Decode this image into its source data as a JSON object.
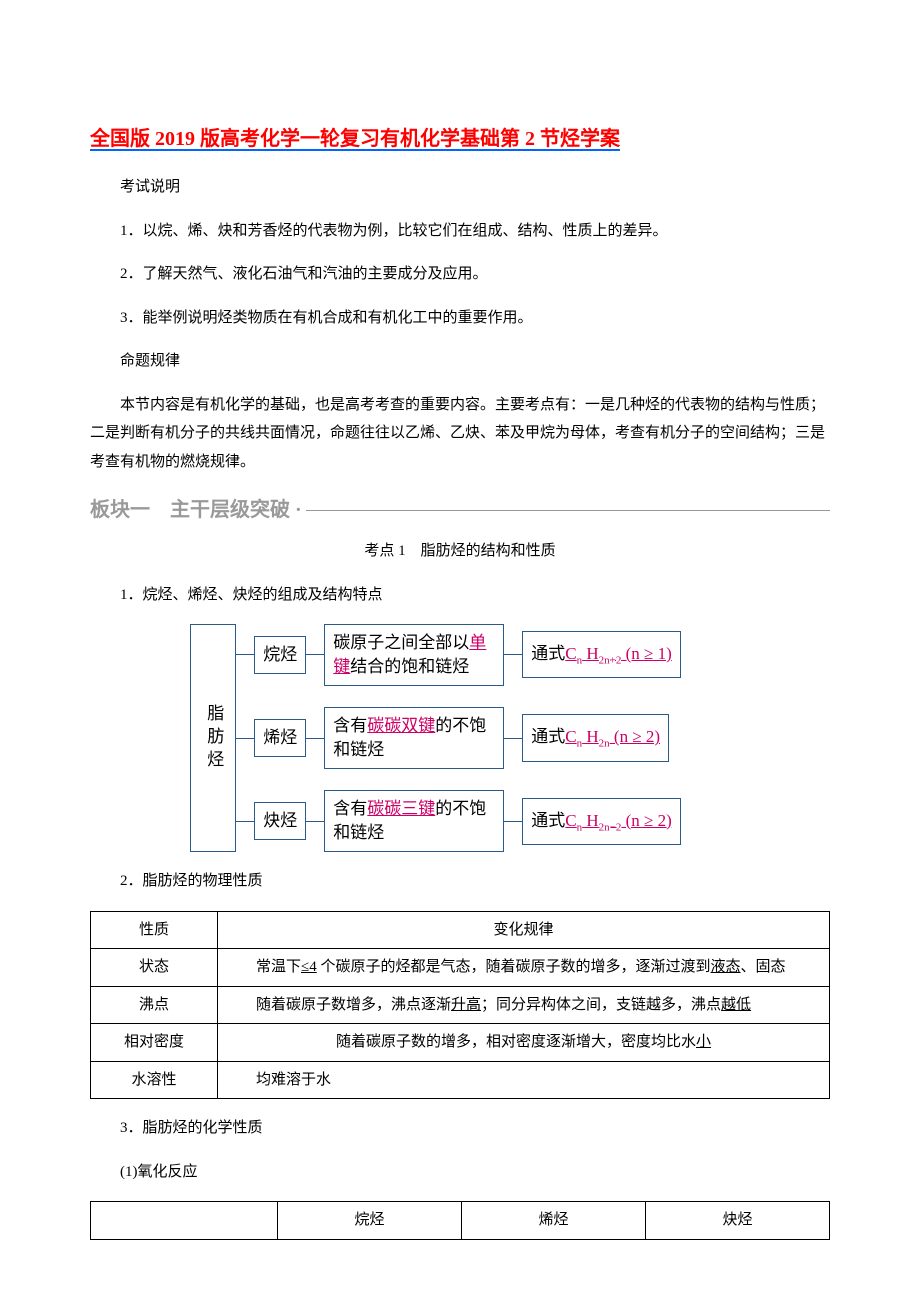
{
  "title": "全国版 2019 版高考化学一轮复习有机化学基础第 2 节烃学案",
  "exam_note_heading": "考试说明",
  "points": [
    "1．以烷、烯、炔和芳香烃的代表物为例，比较它们在组成、结构、性质上的差异。",
    "2．了解天然气、液化石油气和汽油的主要成分及应用。",
    "3．能举例说明烃类物质在有机合成和有机化工中的重要作用。"
  ],
  "rule_heading": "命题规律",
  "rule_body": "本节内容是有机化学的基础，也是高考考查的重要内容。主要考点有：一是几种烃的代表物的结构与性质；二是判断有机分子的共线共面情况，命题往往以乙烯、乙炔、苯及甲烷为母体，考查有机分子的空间结构；三是考查有机物的燃烧规律。",
  "section_header": "板块一　主干层级突破 ·",
  "kp_title": "考点 1　脂肪烃的结构和性质",
  "h1": "1．烷烃、烯烃、炔烃的组成及结构特点",
  "diagram": {
    "root": "脂肪烃",
    "rows": [
      {
        "type_label": "烷烃",
        "desc_pre": "碳原子之间全部以",
        "desc_key": "单键",
        "desc_post": "结合的饱和链烃",
        "formula_label": "通式",
        "formula_html": "C<sub>n</sub> H<sub>2n+2</sub> (n ≥ 1)"
      },
      {
        "type_label": "烯烃",
        "desc_pre": "含有",
        "desc_key": "碳碳双键",
        "desc_post": "的不饱和链烃",
        "formula_label": "通式",
        "formula_html": "C<sub>n</sub> H<sub>2n</sub> (n ≥ 2)"
      },
      {
        "type_label": "炔烃",
        "desc_pre": "含有",
        "desc_key": "碳碳三键",
        "desc_post": "的不饱和链烃",
        "formula_label": "通式",
        "formula_html": "C<sub>n</sub> H<sub>2n−2</sub> (n ≥ 2)"
      }
    ],
    "colors": {
      "box_border": "#2a5a8a",
      "key_color": "#cc0066"
    }
  },
  "h2": "2．脂肪烃的物理性质",
  "phys_table": {
    "headers": [
      "性质",
      "变化规律"
    ],
    "rows": [
      {
        "prop": "状态",
        "rule_pre": "常温下",
        "rule_u1": "≤4",
        "rule_mid": " 个碳原子的烃都是气态，随着碳原子数的增多，逐渐过渡到",
        "rule_u2": "液态",
        "rule_post": "、固态"
      },
      {
        "prop": "沸点",
        "rule_pre": "随着碳原子数增多，沸点逐渐",
        "rule_u1": "升高",
        "rule_mid": "；同分异构体之间，支链越多，沸点",
        "rule_u2": "越低",
        "rule_post": ""
      },
      {
        "prop": "相对密度",
        "rule_pre": "随着碳原子数的增多，相对密度逐渐增大，密度均比水",
        "rule_u1": "小",
        "rule_mid": "",
        "rule_u2": "",
        "rule_post": ""
      },
      {
        "prop": "水溶性",
        "rule_pre": "均难溶于水",
        "rule_u1": "",
        "rule_mid": "",
        "rule_u2": "",
        "rule_post": ""
      }
    ]
  },
  "h3": "3．脂肪烃的化学性质",
  "h3_sub": "(1)氧化反应",
  "chem_headers": [
    "",
    "烷烃",
    "烯烃",
    "炔烃"
  ]
}
